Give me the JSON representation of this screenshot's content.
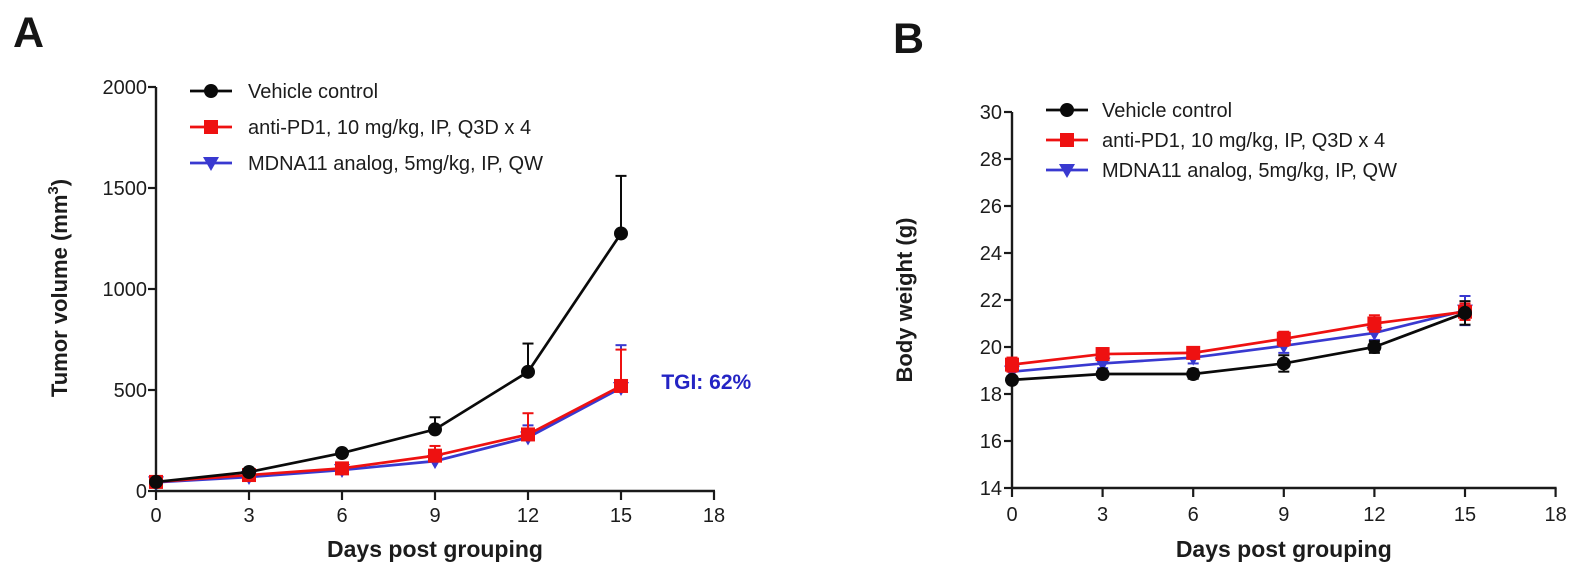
{
  "panels": [
    {
      "letter": "A"
    },
    {
      "letter": "B"
    }
  ],
  "colors": {
    "vehicle": "#0a0a0a",
    "anti_pd1": "#ee1111",
    "mdna11": "#3939d0",
    "annotation_blue": "#2424c4",
    "axis": "#1a1a1a",
    "text": "#1c1c1c"
  },
  "chart_data": [
    {
      "type": "line",
      "panel": "A",
      "title": "",
      "xlabel": "Days post grouping",
      "ylabel": "Tumor volume (mm³)",
      "ylabel_rich": [
        {
          "text": "Tumor volume (mm",
          "sup": false
        },
        {
          "text": "3",
          "sup": true
        },
        {
          "text": ")",
          "sup": false
        }
      ],
      "x": [
        0,
        3,
        6,
        9,
        12,
        15
      ],
      "xlim": [
        0,
        18
      ],
      "xticks": [
        0,
        3,
        6,
        9,
        12,
        15,
        18
      ],
      "ylim": [
        0,
        2000
      ],
      "yticks": [
        0,
        500,
        1000,
        1500,
        2000
      ],
      "grid": false,
      "legend_position": "top-left-inside",
      "error_direction": "up",
      "annotation": {
        "text": "TGI: 62%",
        "color": "#2424c4",
        "x_day": 17.75,
        "y_value": 540
      },
      "series": [
        {
          "name": "Vehicle control",
          "color": "#0a0a0a",
          "marker": "circle",
          "values": [
            45,
            94,
            188,
            305,
            590,
            1275
          ],
          "errors_up": [
            6,
            10,
            15,
            60,
            140,
            285
          ]
        },
        {
          "name": "anti-PD1, 10 mg/kg, IP, Q3D x 4",
          "color": "#ee1111",
          "marker": "square",
          "values": [
            45,
            79,
            112,
            175,
            280,
            520
          ],
          "errors_up": [
            6,
            8,
            12,
            48,
            105,
            180
          ]
        },
        {
          "name": "MDNA11 analog, 5mg/kg, IP, QW",
          "color": "#3939d0",
          "marker": "triangle-down",
          "values": [
            43,
            69,
            104,
            148,
            265,
            510
          ],
          "errors_up": [
            5,
            8,
            10,
            25,
            60,
            212
          ]
        }
      ]
    },
    {
      "type": "line",
      "panel": "B",
      "title": "",
      "xlabel": "Days post grouping",
      "ylabel": "Body weight (g)",
      "ylabel_rich": [
        {
          "text": "Body weight (g)",
          "sup": false
        }
      ],
      "x": [
        0,
        3,
        6,
        9,
        12,
        15
      ],
      "xlim": [
        0,
        18
      ],
      "xticks": [
        0,
        3,
        6,
        9,
        12,
        15,
        18
      ],
      "ylim": [
        14,
        30
      ],
      "yticks": [
        14,
        16,
        18,
        20,
        22,
        24,
        26,
        28,
        30
      ],
      "grid": false,
      "legend_position": "top-left-inside",
      "error_direction": "both",
      "annotation": null,
      "series": [
        {
          "name": "Vehicle control",
          "color": "#0a0a0a",
          "marker": "circle",
          "values": [
            18.6,
            18.85,
            18.85,
            19.3,
            20.0,
            21.45
          ],
          "errors_up": [
            0.15,
            0.15,
            0.2,
            0.35,
            0.25,
            0.5
          ]
        },
        {
          "name": "anti-PD1, 10 mg/kg, IP, Q3D x 4",
          "color": "#ee1111",
          "marker": "square",
          "values": [
            19.25,
            19.7,
            19.75,
            20.35,
            21.0,
            21.5
          ],
          "errors_up": [
            0.3,
            0.25,
            0.25,
            0.3,
            0.35,
            0.35
          ]
        },
        {
          "name": "MDNA11 analog, 5mg/kg, IP, QW",
          "color": "#3939d0",
          "marker": "triangle-down",
          "values": [
            18.95,
            19.3,
            19.55,
            20.05,
            20.6,
            21.55
          ],
          "errors_up": [
            0.2,
            0.2,
            0.25,
            0.3,
            0.3,
            0.62
          ]
        }
      ]
    }
  ]
}
